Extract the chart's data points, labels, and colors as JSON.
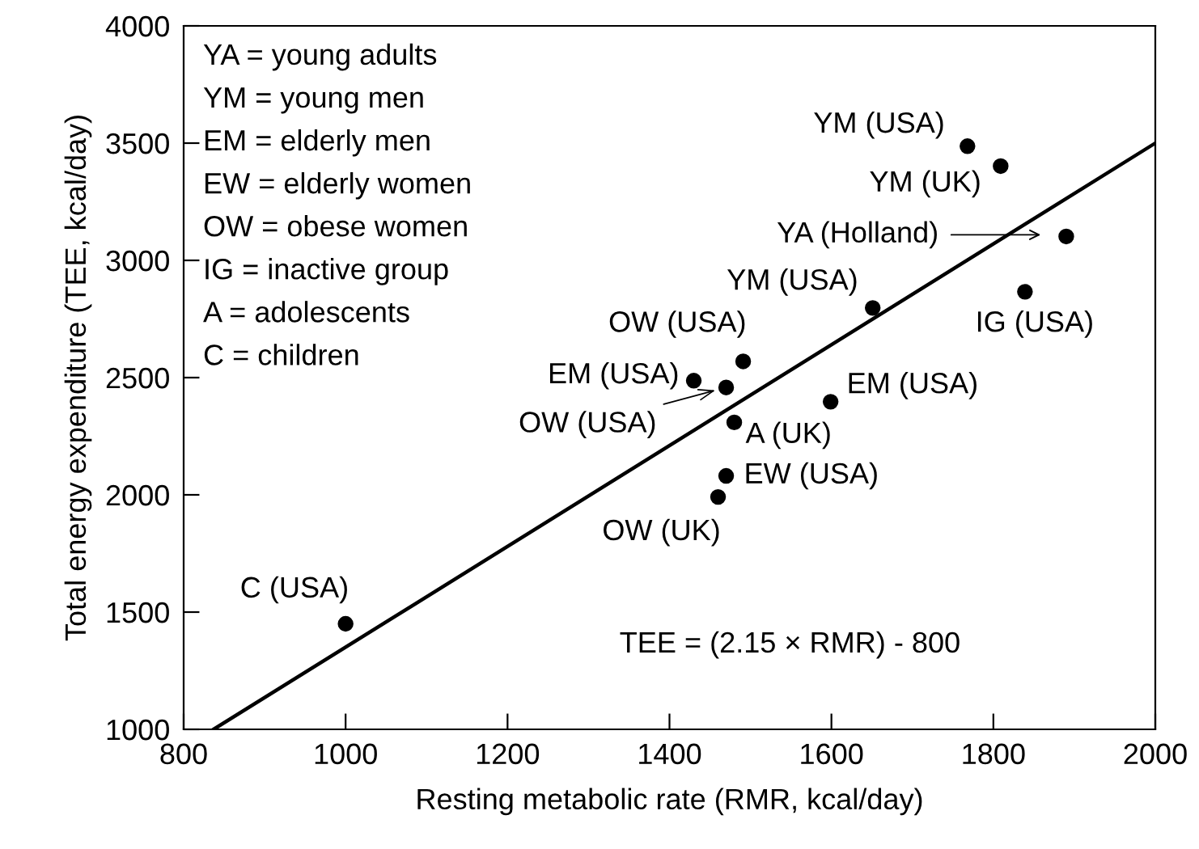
{
  "chart_data": {
    "type": "scatter",
    "xlabel": "Resting metabolic rate (RMR, kcal/day)",
    "ylabel": "Total energy expenditure (TEE, kcal/day)",
    "xlim": [
      800,
      2000
    ],
    "xticks": [
      800,
      1000,
      1200,
      1400,
      1600,
      1800,
      2000
    ],
    "ylim": [
      1000,
      4000
    ],
    "yticks": [
      1000,
      1500,
      2000,
      2500,
      3000,
      3500,
      4000
    ],
    "grid": false,
    "series": [
      {
        "type": "scatter",
        "color": "#000000",
        "marker": "circle",
        "x": [
          1000,
          1768,
          1809,
          1890,
          1839,
          1651,
          1491,
          1430,
          1470,
          1480,
          1599,
          1470,
          1460
        ],
        "values": [
          1450,
          3487,
          3402,
          3102,
          2866,
          2797,
          2569,
          2487,
          2458,
          2309,
          2397,
          2081,
          1991
        ]
      },
      {
        "type": "line",
        "color": "#000000",
        "line_style": "solid",
        "x": [
          837,
          2000
        ],
        "values": [
          1000,
          3500
        ]
      }
    ],
    "annotations": [
      "YA = young adults",
      "YM = young men",
      "EM = elderly men",
      "EW = elderly women",
      "OW = obese women",
      "IG = inactive group",
      "A = adolescents",
      "C = children",
      "TEE = (2.15 × RMR) - 800",
      "YA (Holland)",
      {
        "text": "C (USA)",
        "x": 1000,
        "y": 1450
      },
      {
        "text": "YM (USA)",
        "x": 1768,
        "y": 3487
      },
      {
        "text": "YM (UK)",
        "x": 1809,
        "y": 3402
      },
      {
        "text": "IG (USA)",
        "x": 1839,
        "y": 2866
      },
      {
        "text": "YM (USA)",
        "x": 1651,
        "y": 2797
      },
      {
        "text": "OW (USA)",
        "x": 1491,
        "y": 2569
      },
      {
        "text": "EM (USA)",
        "x": 1430,
        "y": 2487
      },
      {
        "text": "OW (USA)",
        "x": 1470,
        "y": 2458
      },
      {
        "text": "A (UK)",
        "x": 1480,
        "y": 2309
      },
      {
        "text": "EM (USA)",
        "x": 1599,
        "y": 2397
      },
      {
        "text": "EW (USA)",
        "x": 1470,
        "y": 2081
      },
      {
        "text": "OW (UK)",
        "x": 1460,
        "y": 1991
      }
    ]
  }
}
